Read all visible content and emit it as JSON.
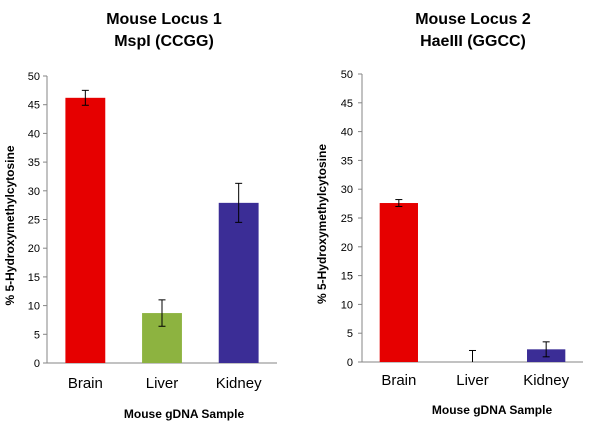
{
  "chart_data": [
    {
      "type": "bar",
      "title": "Mouse Locus 1",
      "subtitle": "MspI (CCGG)",
      "xlabel": "Mouse gDNA  Sample",
      "ylabel": "% 5-Hydroxymethylcytosine",
      "categories": [
        "Brain",
        "Liver",
        "Kidney"
      ],
      "values": [
        46.2,
        8.7,
        27.9
      ],
      "errors": [
        1.3,
        2.3,
        3.4
      ],
      "colors": [
        "#e60000",
        "#8db340",
        "#3b2d96"
      ],
      "ylim": [
        0,
        50
      ],
      "yticks": [
        0,
        5,
        10,
        15,
        20,
        25,
        30,
        35,
        40,
        45,
        50
      ],
      "grid": false,
      "legend": "none"
    },
    {
      "type": "bar",
      "title": "Mouse Locus 2",
      "subtitle": "HaeIII (GGCC)",
      "xlabel": "Mouse gDNA Sample",
      "ylabel": "% 5-Hydroxymethylcytosine",
      "categories": [
        "Brain",
        "Liver",
        "Kidney"
      ],
      "values": [
        27.6,
        0,
        2.2
      ],
      "errors": [
        0.6,
        2.0,
        1.3
      ],
      "colors": [
        "#e60000",
        "#8db340",
        "#3b2d96"
      ],
      "ylim": [
        0,
        50
      ],
      "yticks": [
        0,
        5,
        10,
        15,
        20,
        25,
        30,
        35,
        40,
        45,
        50
      ],
      "grid": false,
      "legend": "none"
    }
  ]
}
